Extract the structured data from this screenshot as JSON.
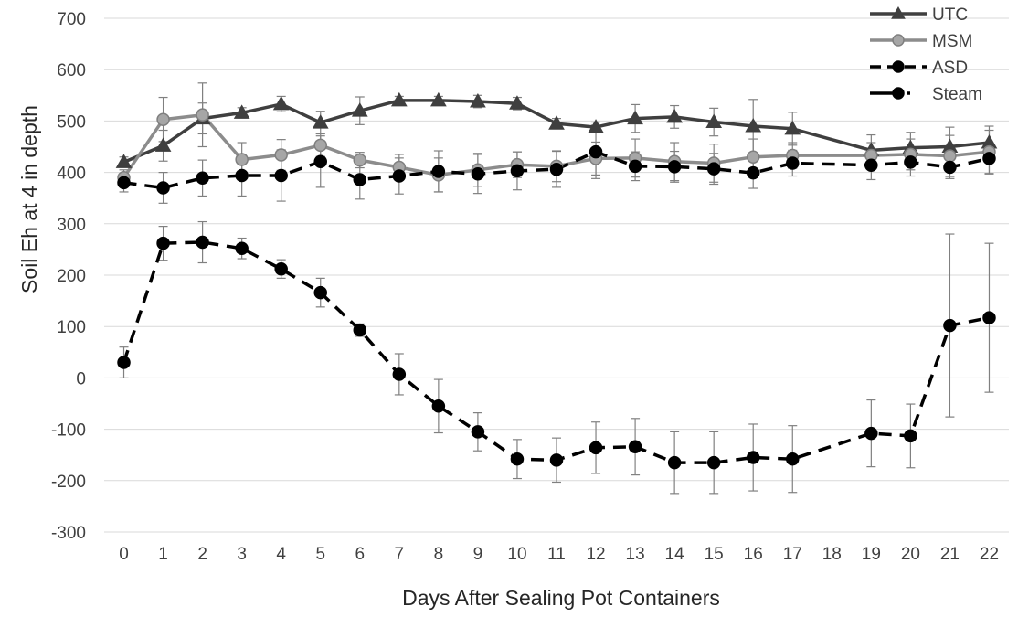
{
  "chart_data": {
    "type": "line",
    "title": "",
    "xlabel": "Days After Sealing Pot Containers",
    "ylabel": "Soil Eh at 4 in depth",
    "categories": [
      "0",
      "1",
      "2",
      "3",
      "4",
      "5",
      "6",
      "7",
      "8",
      "9",
      "10",
      "11",
      "12",
      "13",
      "14",
      "15",
      "16",
      "17",
      "18",
      "19",
      "20",
      "21",
      "22"
    ],
    "ylim": [
      -300,
      700
    ],
    "yticks": [
      "700",
      "600",
      "500",
      "400",
      "300",
      "200",
      "100",
      "0",
      "-100",
      "-200",
      "-300"
    ],
    "grid": "horizontal",
    "legend_position": "top-right",
    "series": [
      {
        "name": "UTC",
        "color": "#3f3f3f",
        "dash": "solid",
        "marker": "triangle",
        "values": [
          420,
          452,
          505,
          516,
          533,
          497,
          520,
          540,
          540,
          538,
          534,
          495,
          488,
          505,
          508,
          498,
          490,
          485,
          null,
          443,
          448,
          450,
          458
        ],
        "errors": [
          10,
          30,
          30,
          10,
          15,
          22,
          27,
          8,
          8,
          12,
          12,
          10,
          10,
          27,
          22,
          27,
          52,
          32,
          null,
          30,
          30,
          38,
          32
        ]
      },
      {
        "name": "MSM",
        "color": "#8c8c8c",
        "dash": "solid",
        "marker": "circle",
        "values": [
          390,
          503,
          512,
          425,
          434,
          453,
          424,
          410,
          395,
          405,
          415,
          412,
          427,
          428,
          421,
          418,
          430,
          433,
          null,
          433,
          435,
          432,
          440
        ],
        "errors": [
          15,
          43,
          62,
          33,
          30,
          22,
          15,
          25,
          33,
          32,
          25,
          30,
          32,
          37,
          37,
          37,
          35,
          25,
          null,
          25,
          30,
          40,
          42
        ]
      },
      {
        "name": "ASD",
        "color": "#000000",
        "dash": "dashed",
        "marker": "circle",
        "values": [
          30,
          262,
          264,
          252,
          212,
          166,
          93,
          7,
          -55,
          -105,
          -158,
          -160,
          -136,
          -134,
          -165,
          -165,
          -155,
          -158,
          null,
          -108,
          -113,
          102,
          117
        ],
        "errors": [
          30,
          33,
          40,
          20,
          18,
          28,
          12,
          40,
          52,
          37,
          38,
          43,
          50,
          55,
          60,
          60,
          65,
          65,
          null,
          65,
          62,
          178,
          145
        ]
      },
      {
        "name": "Steam",
        "color": "#000000",
        "dash": "dotdash",
        "marker": "circle",
        "values": [
          380,
          370,
          389,
          394,
          394,
          421,
          386,
          393,
          402,
          397,
          403,
          406,
          440,
          412,
          411,
          407,
          399,
          418,
          null,
          414,
          420,
          410,
          427
        ],
        "errors": [
          18,
          30,
          35,
          40,
          50,
          50,
          38,
          35,
          40,
          38,
          37,
          35,
          52,
          28,
          30,
          30,
          30,
          25,
          null,
          28,
          27,
          22,
          30
        ]
      }
    ]
  }
}
